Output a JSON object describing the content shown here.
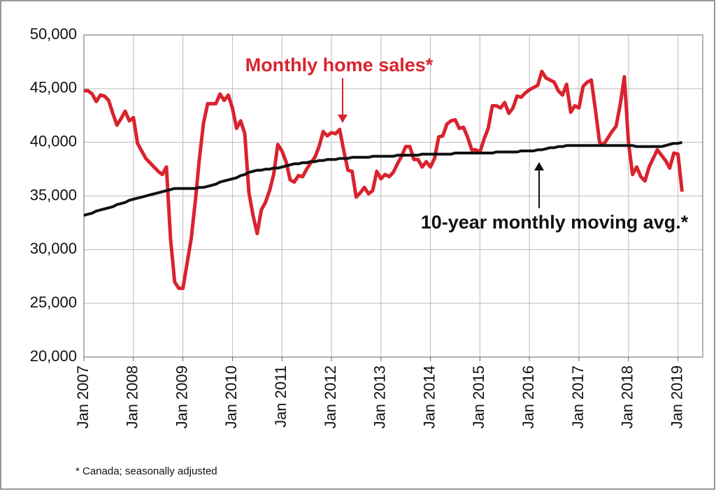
{
  "chart_data": {
    "type": "line",
    "x": [
      "2007-01",
      "2007-02",
      "2007-03",
      "2007-04",
      "2007-05",
      "2007-06",
      "2007-07",
      "2007-08",
      "2007-09",
      "2007-10",
      "2007-11",
      "2007-12",
      "2008-01",
      "2008-02",
      "2008-03",
      "2008-04",
      "2008-05",
      "2008-06",
      "2008-07",
      "2008-08",
      "2008-09",
      "2008-10",
      "2008-11",
      "2008-12",
      "2009-01",
      "2009-02",
      "2009-03",
      "2009-04",
      "2009-05",
      "2009-06",
      "2009-07",
      "2009-08",
      "2009-09",
      "2009-10",
      "2009-11",
      "2009-12",
      "2010-01",
      "2010-02",
      "2010-03",
      "2010-04",
      "2010-05",
      "2010-06",
      "2010-07",
      "2010-08",
      "2010-09",
      "2010-10",
      "2010-11",
      "2010-12",
      "2011-01",
      "2011-02",
      "2011-03",
      "2011-04",
      "2011-05",
      "2011-06",
      "2011-07",
      "2011-08",
      "2011-09",
      "2011-10",
      "2011-11",
      "2011-12",
      "2012-01",
      "2012-02",
      "2012-03",
      "2012-04",
      "2012-05",
      "2012-06",
      "2012-07",
      "2012-08",
      "2012-09",
      "2012-10",
      "2012-11",
      "2012-12",
      "2013-01",
      "2013-02",
      "2013-03",
      "2013-04",
      "2013-05",
      "2013-06",
      "2013-07",
      "2013-08",
      "2013-09",
      "2013-10",
      "2013-11",
      "2013-12",
      "2014-01",
      "2014-02",
      "2014-03",
      "2014-04",
      "2014-05",
      "2014-06",
      "2014-07",
      "2014-08",
      "2014-09",
      "2014-10",
      "2014-11",
      "2014-12",
      "2015-01",
      "2015-02",
      "2015-03",
      "2015-04",
      "2015-05",
      "2015-06",
      "2015-07",
      "2015-08",
      "2015-09",
      "2015-10",
      "2015-11",
      "2015-12",
      "2016-01",
      "2016-02",
      "2016-03",
      "2016-04",
      "2016-05",
      "2016-06",
      "2016-07",
      "2016-08",
      "2016-09",
      "2016-10",
      "2016-11",
      "2016-12",
      "2017-01",
      "2017-02",
      "2017-03",
      "2017-04",
      "2017-05",
      "2017-06",
      "2017-07",
      "2017-08",
      "2017-09",
      "2017-10",
      "2017-11",
      "2017-12",
      "2018-01",
      "2018-02",
      "2018-03",
      "2018-04",
      "2018-05",
      "2018-06",
      "2018-07",
      "2018-08",
      "2018-09",
      "2018-10",
      "2018-11",
      "2018-12",
      "2019-01",
      "2019-02"
    ],
    "series": [
      {
        "color": "#d9232e",
        "values": [
          44800,
          44800,
          44500,
          43800,
          44400,
          44300,
          43900,
          42700,
          41600,
          42200,
          42900,
          42000,
          42300,
          39900,
          39200,
          38500,
          38100,
          37700,
          37300,
          37000,
          37700,
          31000,
          27000,
          26400,
          26400,
          28700,
          31000,
          34500,
          38500,
          41800,
          43600,
          43600,
          43600,
          44500,
          43900,
          44400,
          43200,
          41300,
          42000,
          40800,
          35300,
          33200,
          31500,
          33700,
          34400,
          35500,
          37000,
          39800,
          39200,
          38200,
          36500,
          36300,
          36900,
          36800,
          37500,
          38100,
          38600,
          39600,
          41000,
          40600,
          40900,
          40800,
          41200,
          39200,
          37400,
          37300,
          34900,
          35300,
          35800,
          35200,
          35500,
          37300,
          36600,
          37000,
          36800,
          37200,
          38000,
          38700,
          39600,
          39600,
          38400,
          38400,
          37700,
          38200,
          37700,
          38500,
          40500,
          40600,
          41700,
          42000,
          42100,
          41300,
          41400,
          40500,
          39300,
          39300,
          39100,
          40300,
          41300,
          43400,
          43400,
          43200,
          43700,
          42700,
          43200,
          44300,
          44200,
          44600,
          44900,
          45100,
          45300,
          46600,
          46000,
          45800,
          45600,
          44800,
          44400,
          45400,
          42800,
          43400,
          43200,
          45200,
          45600,
          45800,
          43000,
          40000,
          39800,
          40400,
          41000,
          41500,
          43500,
          46100,
          40000,
          37000,
          37700,
          36800,
          36400,
          37700,
          38500,
          39300,
          38800,
          38300,
          37600,
          39000,
          38900,
          35400
        ]
      },
      {
        "color": "#111111",
        "values": [
          33200,
          33300,
          33400,
          33600,
          33700,
          33800,
          33900,
          34000,
          34200,
          34300,
          34400,
          34600,
          34700,
          34800,
          34900,
          35000,
          35100,
          35200,
          35300,
          35400,
          35500,
          35600,
          35700,
          35700,
          35700,
          35700,
          35700,
          35700,
          35800,
          35800,
          35900,
          36000,
          36100,
          36300,
          36400,
          36500,
          36600,
          36700,
          36900,
          37000,
          37200,
          37300,
          37400,
          37400,
          37500,
          37500,
          37600,
          37600,
          37700,
          37800,
          37900,
          38000,
          38000,
          38100,
          38100,
          38200,
          38200,
          38300,
          38300,
          38400,
          38400,
          38400,
          38500,
          38500,
          38500,
          38600,
          38600,
          38600,
          38600,
          38600,
          38700,
          38700,
          38700,
          38700,
          38700,
          38700,
          38800,
          38800,
          38800,
          38800,
          38800,
          38800,
          38900,
          38900,
          38900,
          38900,
          38900,
          38900,
          38900,
          38900,
          39000,
          39000,
          39000,
          39000,
          39000,
          39000,
          39000,
          39000,
          39000,
          39000,
          39100,
          39100,
          39100,
          39100,
          39100,
          39100,
          39200,
          39200,
          39200,
          39200,
          39300,
          39300,
          39400,
          39500,
          39500,
          39600,
          39600,
          39700,
          39700,
          39700,
          39700,
          39700,
          39700,
          39700,
          39700,
          39700,
          39700,
          39700,
          39700,
          39700,
          39700,
          39700,
          39700,
          39700,
          39600,
          39600,
          39600,
          39600,
          39600,
          39600,
          39600,
          39700,
          39800,
          39900,
          39900,
          40000
        ]
      }
    ],
    "xlim": [
      "2007-01",
      "2019-07"
    ],
    "xticks": [
      {
        "value": "2007-01",
        "label": "Jan 2007"
      },
      {
        "value": "2008-01",
        "label": "Jan 2008"
      },
      {
        "value": "2009-01",
        "label": "Jan 2009"
      },
      {
        "value": "2010-01",
        "label": "Jan 2010"
      },
      {
        "value": "2011-01",
        "label": "Jan 2011"
      },
      {
        "value": "2012-01",
        "label": "Jan 2012"
      },
      {
        "value": "2013-01",
        "label": "Jan 2013"
      },
      {
        "value": "2014-01",
        "label": "Jan 2014"
      },
      {
        "value": "2015-01",
        "label": "Jan 2015"
      },
      {
        "value": "2016-01",
        "label": "Jan 2016"
      },
      {
        "value": "2017-01",
        "label": "Jan 2017"
      },
      {
        "value": "2018-01",
        "label": "Jan 2018"
      },
      {
        "value": "2019-01",
        "label": "Jan 2019"
      }
    ],
    "ylim": [
      20000,
      50000
    ],
    "yticks": [
      {
        "value": 20000,
        "label": "20,000"
      },
      {
        "value": 25000,
        "label": "25,000"
      },
      {
        "value": 30000,
        "label": "30,000"
      },
      {
        "value": 35000,
        "label": "35,000"
      },
      {
        "value": 40000,
        "label": "40,000"
      },
      {
        "value": 45000,
        "label": "45,000"
      },
      {
        "value": 50000,
        "label": "50,000"
      }
    ],
    "grid": true,
    "annotations": [
      "Monthly home sales*",
      "10-year monthly moving avg.*"
    ],
    "footnote": "* Canada; seasonally adjusted"
  }
}
